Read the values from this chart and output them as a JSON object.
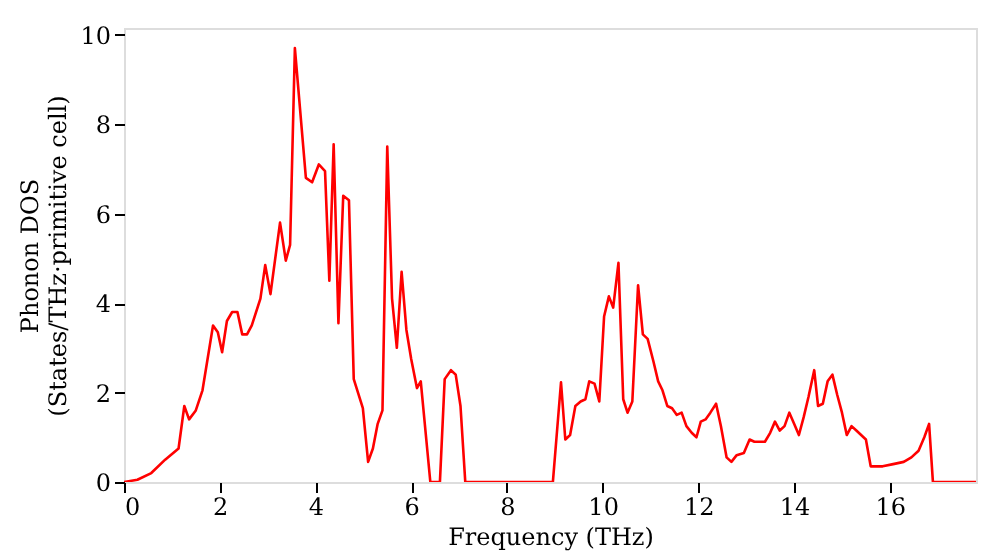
{
  "chart_data": {
    "type": "line",
    "xlabel": "Frequency (THz)",
    "ylabel": "Phonon DOS\n(States/THz·primitive cell)",
    "xlim": [
      0,
      17.8
    ],
    "ylim": [
      0,
      10.15
    ],
    "xticks": [
      0,
      2,
      4,
      6,
      8,
      10,
      12,
      14,
      16
    ],
    "yticks": [
      0,
      2,
      4,
      6,
      8,
      10
    ],
    "grid": false,
    "line_style": "solid",
    "marker": "none",
    "series": [
      {
        "color": "#ff0000",
        "x": [
          0,
          0.28,
          0.57,
          0.86,
          1.14,
          1.26,
          1.36,
          1.5,
          1.64,
          1.86,
          1.96,
          2.05,
          2.15,
          2.26,
          2.37,
          2.47,
          2.57,
          2.67,
          2.85,
          2.95,
          3.06,
          3.26,
          3.38,
          3.47,
          3.57,
          3.8,
          3.93,
          4.07,
          4.2,
          4.29,
          4.38,
          4.48,
          4.58,
          4.7,
          4.8,
          4.99,
          5.1,
          5.2,
          5.3,
          5.4,
          5.5,
          5.6,
          5.7,
          5.8,
          5.9,
          6.0,
          6.12,
          6.2,
          6.4,
          6.6,
          6.7,
          6.83,
          6.93,
          7.03,
          7.13,
          8.96,
          9.13,
          9.22,
          9.32,
          9.43,
          9.54,
          9.64,
          9.72,
          9.83,
          9.93,
          10.03,
          10.13,
          10.22,
          10.33,
          10.43,
          10.52,
          10.62,
          10.74,
          10.84,
          10.94,
          11.06,
          11.16,
          11.25,
          11.35,
          11.45,
          11.55,
          11.65,
          11.75,
          11.86,
          11.96,
          12.05,
          12.15,
          12.25,
          12.37,
          12.47,
          12.59,
          12.69,
          12.8,
          12.95,
          13.07,
          13.17,
          13.39,
          13.5,
          13.6,
          13.7,
          13.8,
          13.9,
          14.0,
          14.1,
          14.2,
          14.3,
          14.42,
          14.5,
          14.6,
          14.7,
          14.8,
          14.9,
          15.0,
          15.1,
          15.2,
          15.3,
          15.4,
          15.5,
          15.6,
          15.85,
          16.07,
          16.29,
          16.45,
          16.6,
          16.72,
          16.82,
          16.9,
          17.8
        ],
        "values": [
          0,
          0.05,
          0.2,
          0.5,
          0.75,
          1.7,
          1.4,
          1.6,
          2.05,
          3.5,
          3.35,
          2.9,
          3.6,
          3.8,
          3.8,
          3.3,
          3.3,
          3.5,
          4.1,
          4.85,
          4.2,
          5.8,
          4.95,
          5.3,
          9.7,
          6.8,
          6.7,
          7.1,
          6.95,
          4.5,
          7.55,
          3.55,
          6.4,
          6.3,
          2.3,
          1.65,
          0.45,
          0.75,
          1.3,
          1.6,
          7.5,
          4.1,
          3.0,
          4.7,
          3.4,
          2.75,
          2.1,
          2.25,
          0,
          0,
          2.3,
          2.5,
          2.4,
          1.7,
          0,
          0,
          2.23,
          0.95,
          1.05,
          1.7,
          1.8,
          1.85,
          2.25,
          2.2,
          1.8,
          3.7,
          4.15,
          3.9,
          4.9,
          1.85,
          1.55,
          1.8,
          4.4,
          3.3,
          3.2,
          2.7,
          2.25,
          2.05,
          1.7,
          1.65,
          1.5,
          1.55,
          1.25,
          1.1,
          1.0,
          1.35,
          1.4,
          1.55,
          1.75,
          1.25,
          0.55,
          0.45,
          0.6,
          0.65,
          0.95,
          0.9,
          0.9,
          1.1,
          1.35,
          1.15,
          1.25,
          1.55,
          1.3,
          1.05,
          1.45,
          1.9,
          2.5,
          1.7,
          1.75,
          2.25,
          2.4,
          1.95,
          1.55,
          1.05,
          1.25,
          1.15,
          1.05,
          0.95,
          0.35,
          0.35,
          0.4,
          0.45,
          0.55,
          0.7,
          1.0,
          1.3,
          0,
          0
        ]
      }
    ]
  }
}
